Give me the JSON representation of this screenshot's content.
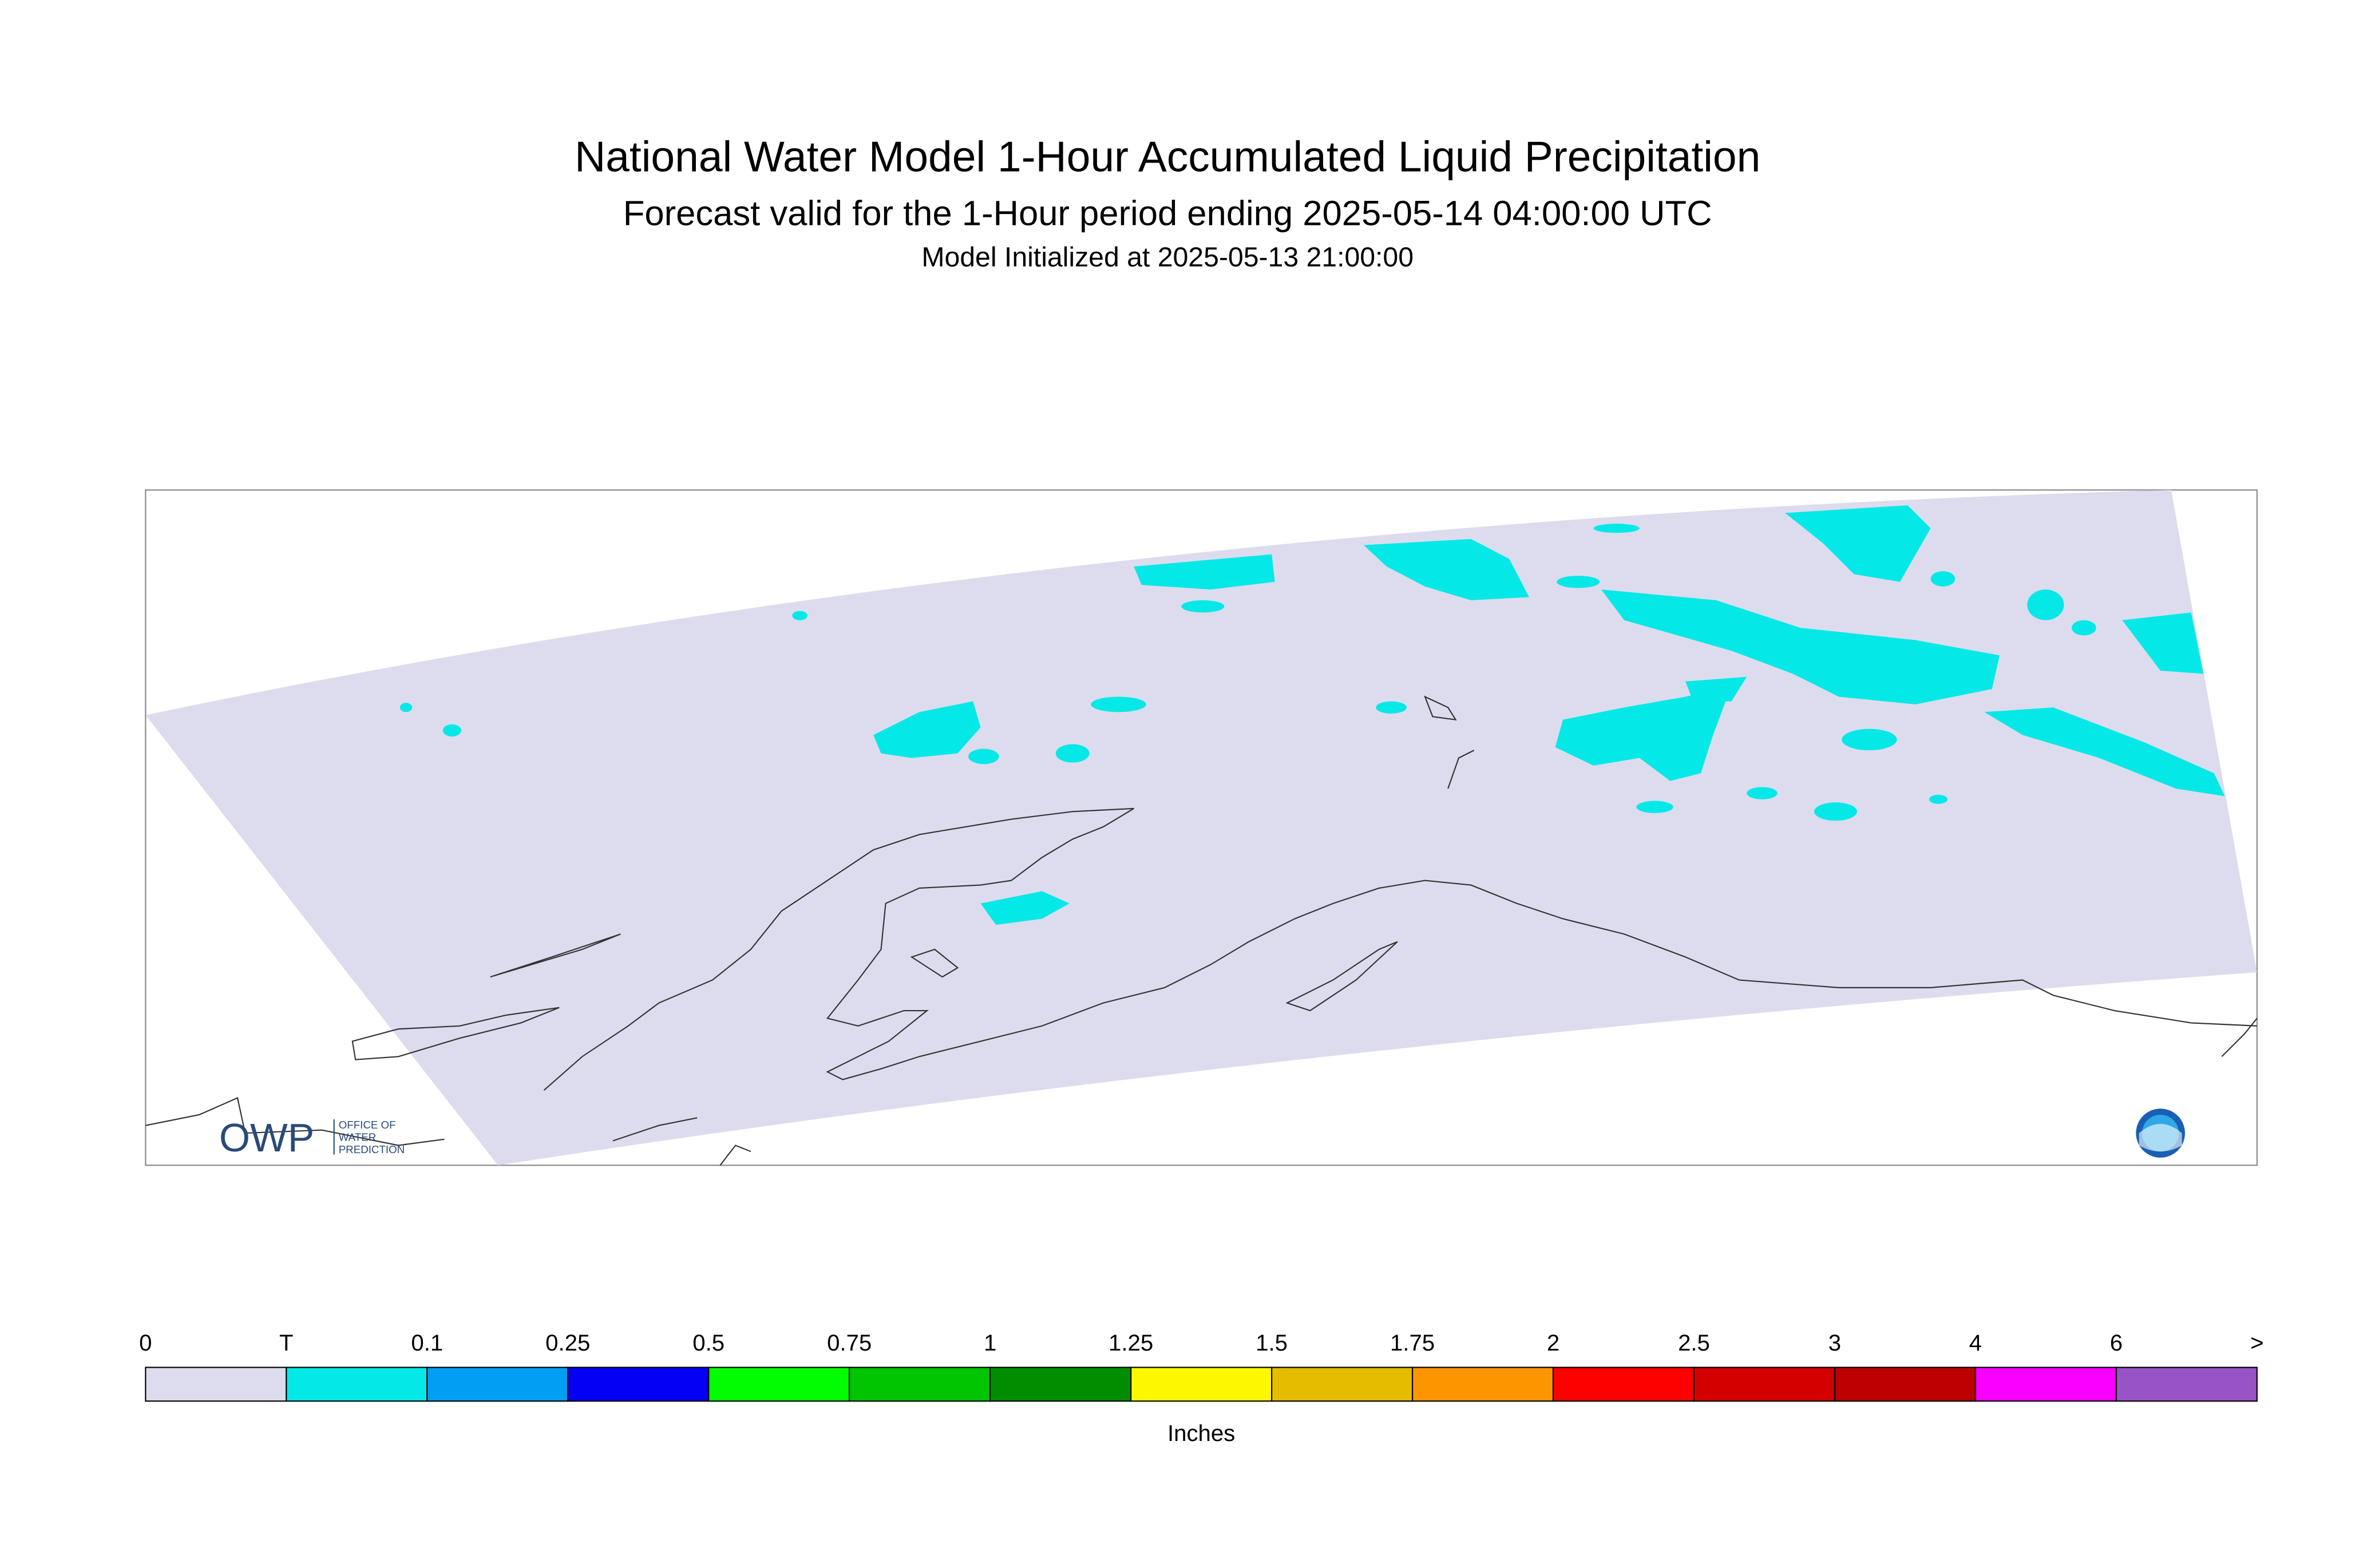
{
  "header": {
    "title": "National Water Model 1-Hour Accumulated Liquid Precipitation",
    "subtitle": "Forecast valid for the 1-Hour period ending 2025-05-14 04:00:00 UTC",
    "initialized": "Model Initialized at 2025-05-13 21:00:00"
  },
  "legend": {
    "labels": [
      "0",
      "T",
      "0.1",
      "0.25",
      "0.5",
      "0.75",
      "1",
      "1.25",
      "1.5",
      "1.75",
      "2",
      "2.5",
      "3",
      "4",
      "6",
      ">"
    ],
    "colors": [
      "#dcdcee",
      "#04e9e7",
      "#019ff4",
      "#0300f4",
      "#02fd02",
      "#01c501",
      "#008e00",
      "#fdf802",
      "#e5bc00",
      "#fd9500",
      "#fd0000",
      "#d40000",
      "#bc0000",
      "#f800fd",
      "#9854c6"
    ],
    "unit": "Inches"
  },
  "logo": {
    "acronym": "OWP",
    "line1": "OFFICE OF",
    "line2": "WATER",
    "line3": "PREDICTION"
  }
}
